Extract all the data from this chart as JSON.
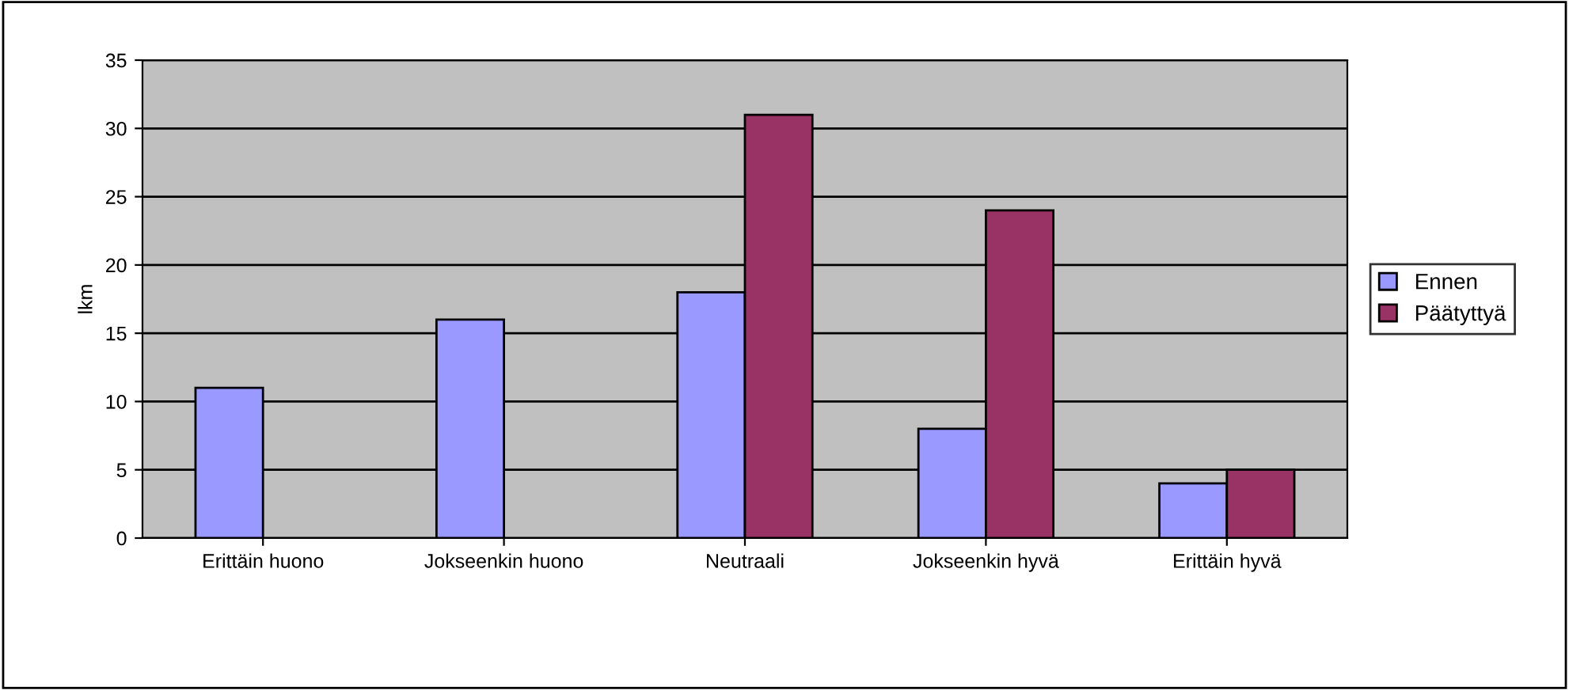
{
  "chart_data": {
    "type": "bar",
    "ylabel": "lkm",
    "categories": [
      "Erittäin huono",
      "Jokseenkin huono",
      "Neutraali",
      "Jokseenkin hyvä",
      "Erittäin hyvä"
    ],
    "series": [
      {
        "name": "Ennen",
        "color": "#9999ff",
        "values": [
          11,
          16,
          18,
          8,
          4
        ]
      },
      {
        "name": "Päätyttyä",
        "color": "#993366",
        "values": [
          null,
          null,
          31,
          24,
          5
        ]
      }
    ],
    "ylim": [
      0,
      35
    ],
    "yticks": [
      0,
      5,
      10,
      15,
      20,
      25,
      30,
      35
    ],
    "grid": "y",
    "legend": "right"
  }
}
